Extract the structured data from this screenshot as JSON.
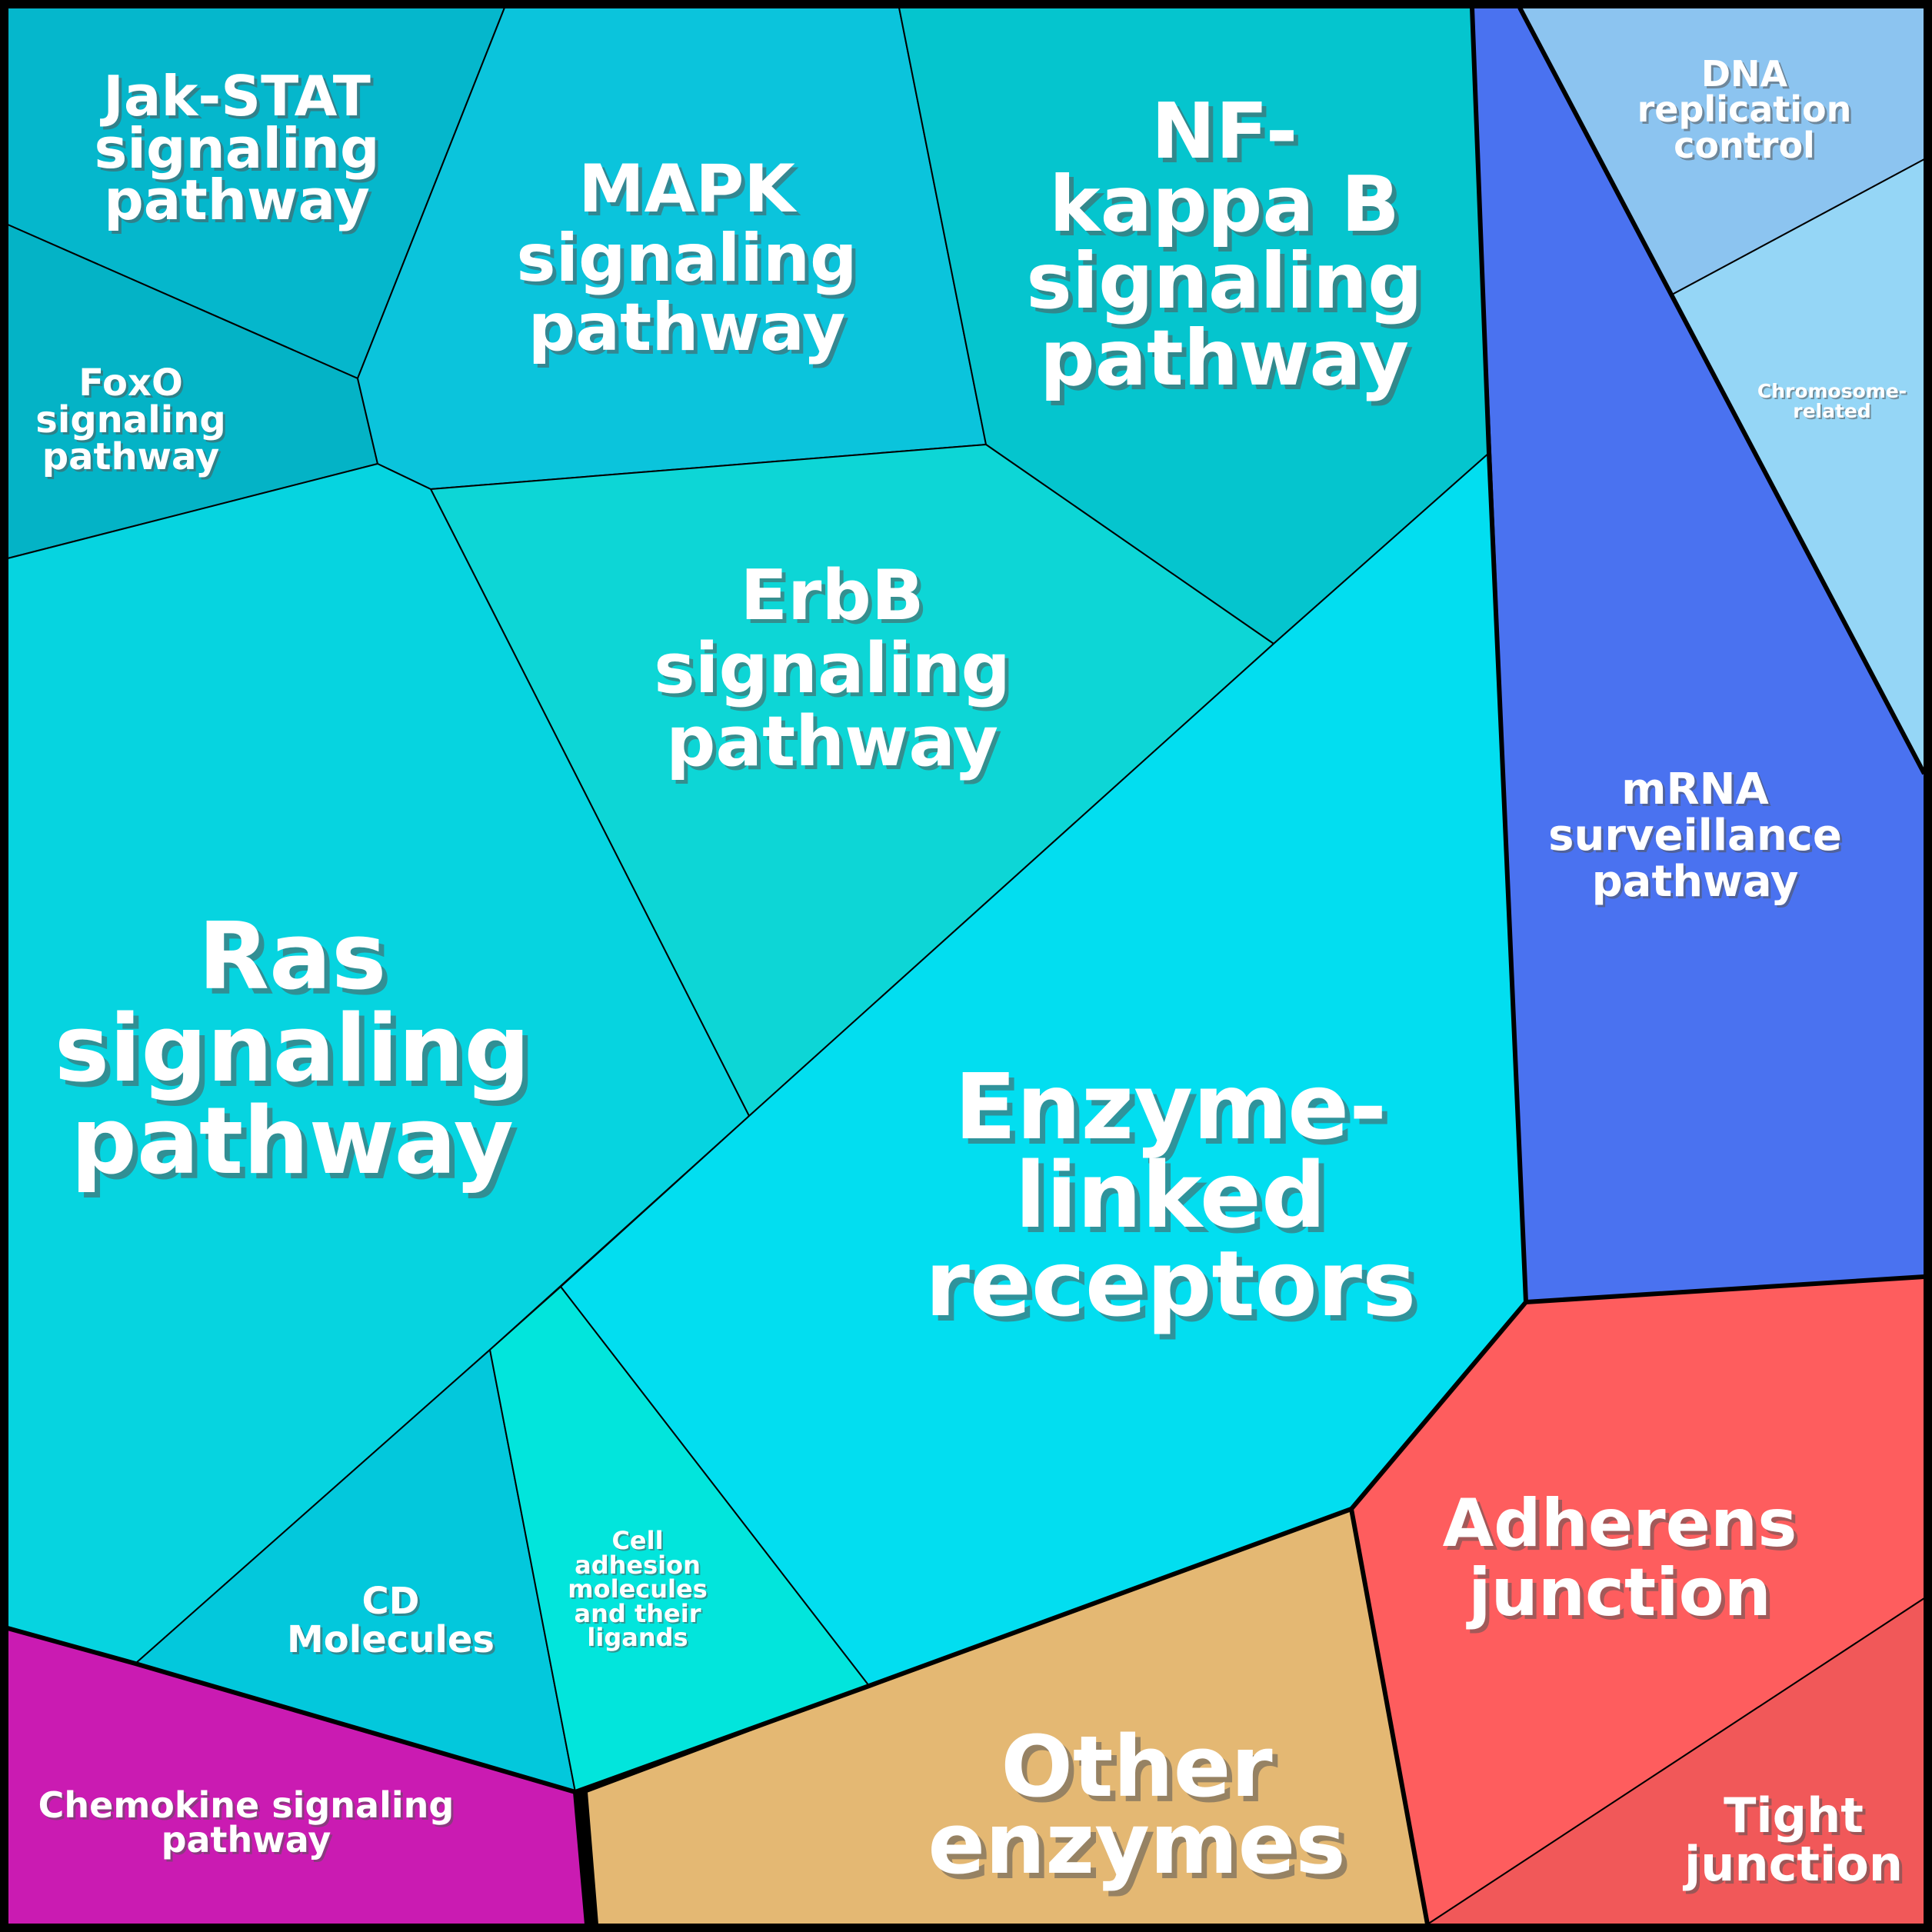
{
  "cells": [
    {
      "id": "jak-stat",
      "label_lines": [
        "Jak-STAT",
        "signaling",
        "pathway"
      ],
      "color": "#05B7CC"
    },
    {
      "id": "foxo",
      "label_lines": [
        "FoxO",
        "signaling",
        "pathway"
      ],
      "color": "#04B3C6"
    },
    {
      "id": "mapk",
      "label_lines": [
        "MAPK",
        "signaling",
        "pathway"
      ],
      "color": "#0BC4DC"
    },
    {
      "id": "nf-kappa-b",
      "label_lines": [
        "NF-",
        "kappa B",
        "signaling",
        "pathway"
      ],
      "color": "#05C5CE"
    },
    {
      "id": "erbb",
      "label_lines": [
        "ErbB",
        "signaling",
        "pathway"
      ],
      "color": "#0DD6D6"
    },
    {
      "id": "ras",
      "label_lines": [
        "Ras",
        "signaling",
        "pathway"
      ],
      "color": "#06D4E0"
    },
    {
      "id": "enzyme-linked",
      "label_lines": [
        "Enzyme-",
        "linked",
        "receptors"
      ],
      "color": "#02DEF0"
    },
    {
      "id": "cd-molecules",
      "label_lines": [
        "CD",
        "Molecules"
      ],
      "color": "#03C8DC"
    },
    {
      "id": "cell-adhesion",
      "label_lines": [
        "Cell",
        "adhesion",
        "molecules",
        "and their",
        "ligands"
      ],
      "color": "#02E5DC"
    },
    {
      "id": "chemokine",
      "label_lines": [
        "Chemokine signaling",
        "pathway"
      ],
      "color": "#CA1BB2"
    },
    {
      "id": "other-enzymes",
      "label_lines": [
        "Other",
        "enzymes"
      ],
      "color": "#E4B873"
    },
    {
      "id": "adherens",
      "label_lines": [
        "Adherens",
        "junction"
      ],
      "color": "#FE5D5E"
    },
    {
      "id": "tight",
      "label_lines": [
        "Tight",
        "junction"
      ],
      "color": "#F15859"
    },
    {
      "id": "mrna",
      "label_lines": [
        "mRNA",
        "surveillance",
        "pathway"
      ],
      "color": "#4A72F0"
    },
    {
      "id": "dna-replication",
      "label_lines": [
        "DNA",
        "replication",
        "control"
      ],
      "color": "#8CC4F0"
    },
    {
      "id": "chromosome",
      "label_lines": [
        "Chromosome-",
        "related"
      ],
      "color": "#95D6F6"
    }
  ]
}
